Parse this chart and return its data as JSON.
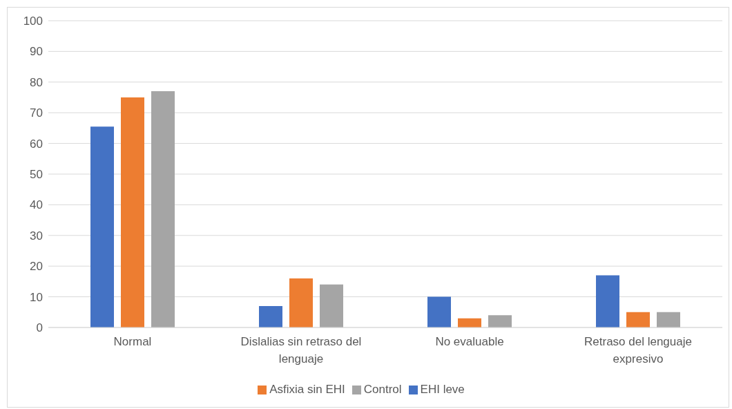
{
  "chart_data": {
    "type": "bar",
    "categories": [
      "Normal",
      "Dislalias sin retraso del lenguaje",
      "No evaluable",
      "Retraso del lenguaje expresivo"
    ],
    "series": [
      {
        "name": "EHI leve",
        "color": "#4472c4",
        "values": [
          65.5,
          7,
          10,
          17
        ]
      },
      {
        "name": "Asfixia sin EHI",
        "color": "#ed7d31",
        "values": [
          75,
          16,
          3,
          5
        ]
      },
      {
        "name": "Control",
        "color": "#a5a5a5",
        "values": [
          77,
          14,
          4,
          5
        ]
      }
    ],
    "ylim": [
      0,
      100
    ],
    "yticks": [
      0,
      10,
      20,
      30,
      40,
      50,
      60,
      70,
      80,
      90,
      100
    ],
    "grid": "y",
    "legend": "bottom"
  }
}
